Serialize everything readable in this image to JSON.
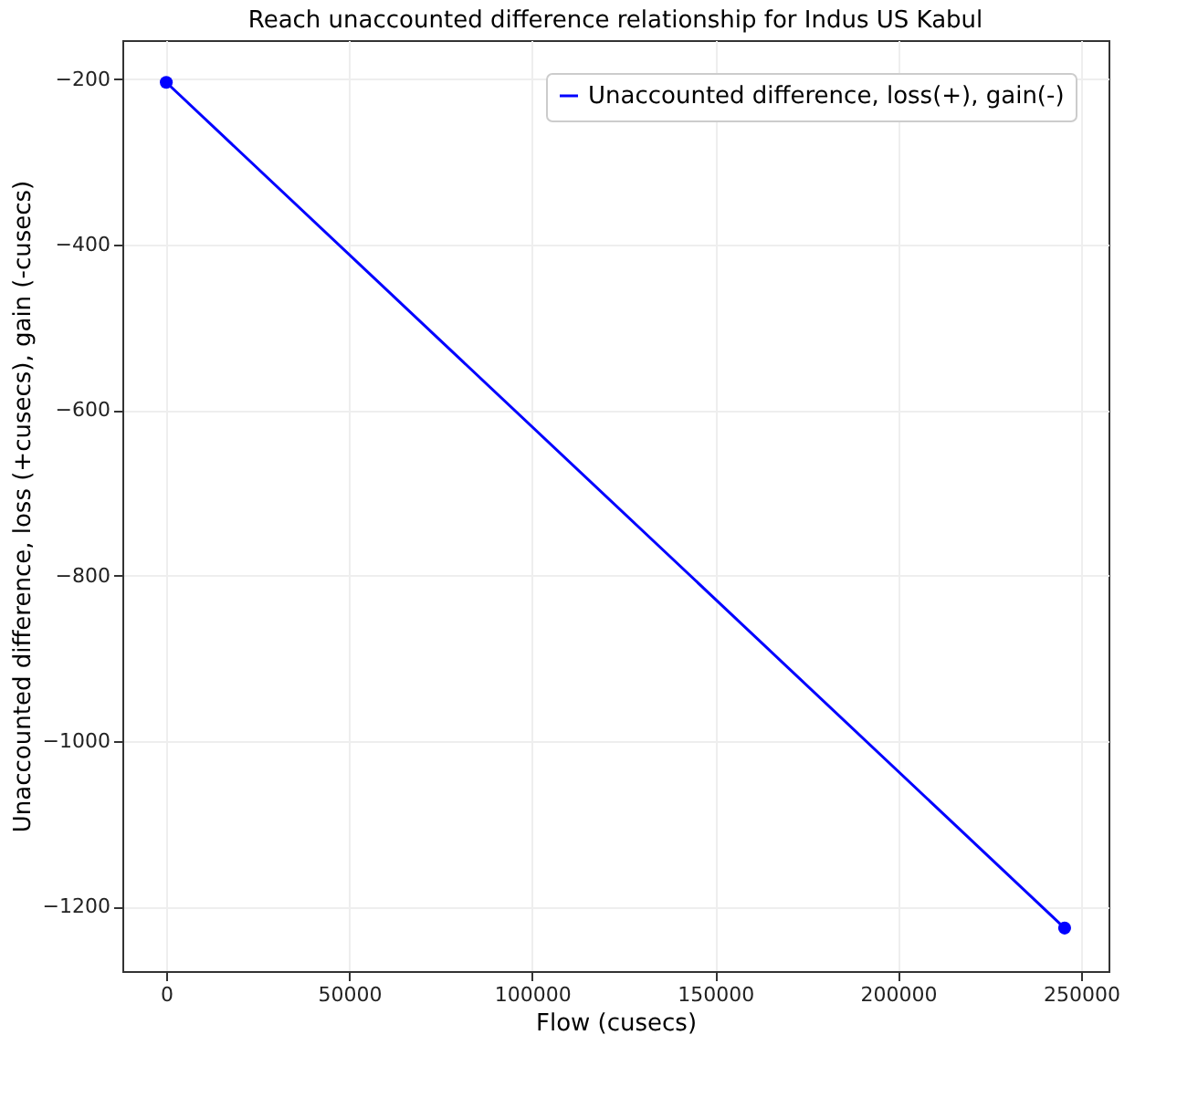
{
  "chart_data": {
    "type": "line",
    "title": "Reach unaccounted difference relationship for Indus US Kabul",
    "xlabel": "Flow (cusecs)",
    "ylabel": "Unaccounted difference, loss (+cusecs), gain (-cusecs)",
    "x": [
      0,
      245500
    ],
    "series": [
      {
        "name": "Unaccounted difference, loss(+), gain(-)",
        "color": "#0000ff",
        "values": [
          -204,
          -1226
        ]
      }
    ],
    "xlim": [
      -12000,
      257500
    ],
    "xticks": [
      0,
      50000,
      100000,
      150000,
      200000,
      250000
    ],
    "ylim": [
      -1278,
      -153
    ],
    "yticks": [
      -1200,
      -1000,
      -800,
      -600,
      -400,
      -200
    ],
    "grid": true,
    "legend": "top right",
    "marker": "circle",
    "line_style": "solid"
  }
}
